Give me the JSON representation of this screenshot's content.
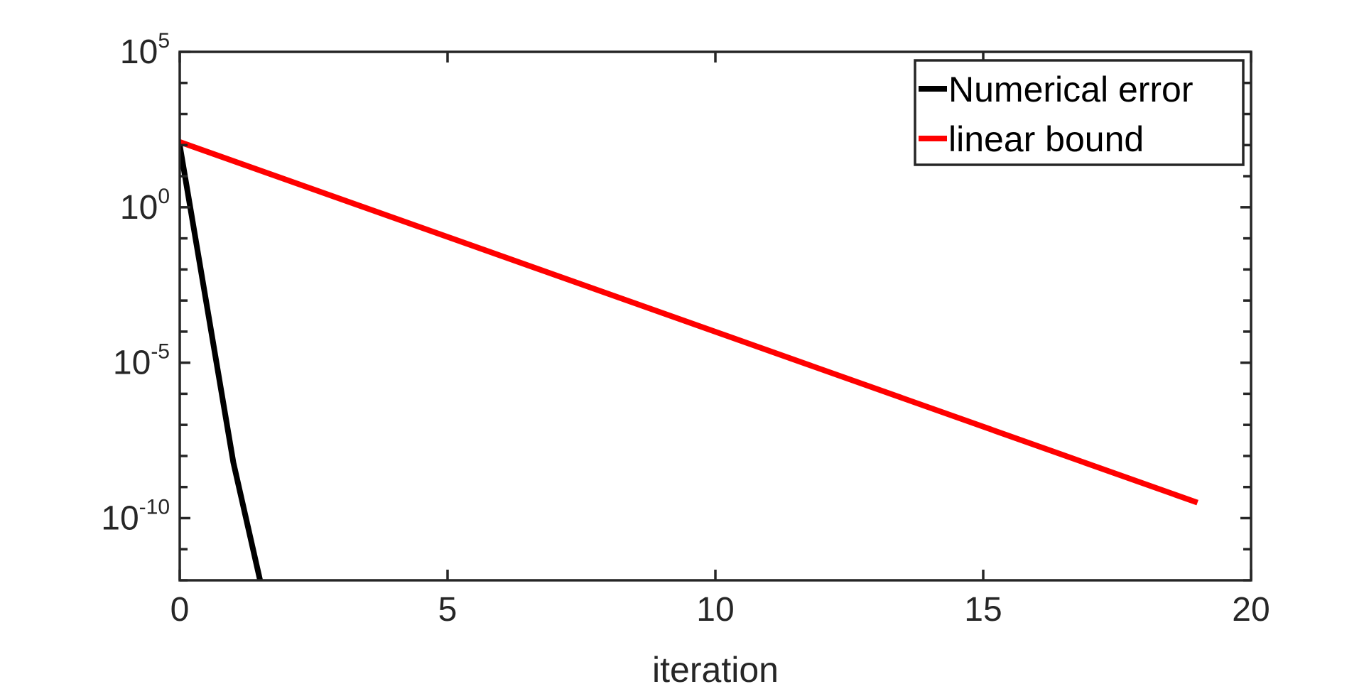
{
  "chart_data": {
    "type": "line",
    "title": "",
    "xlabel": "iteration",
    "ylabel": "",
    "xlim": [
      0,
      20
    ],
    "ylim_log10": [
      -12,
      5
    ],
    "y_scale": "log",
    "grid": false,
    "legend_position": "top-right",
    "x_ticks": [
      0,
      5,
      10,
      15,
      20
    ],
    "x_tick_labels": [
      "0",
      "5",
      "10",
      "15",
      "20"
    ],
    "y_ticks": [
      {
        "base": "10",
        "exp": "5",
        "log10": 5
      },
      {
        "base": "10",
        "exp": "0",
        "log10": 0
      },
      {
        "base": "10",
        "exp": "-5",
        "log10": -5
      },
      {
        "base": "10",
        "exp": "-10",
        "log10": -10
      }
    ],
    "series": [
      {
        "name": "Numerical error",
        "color": "#000000",
        "x": [
          0,
          1,
          1.5
        ],
        "log10_y": [
          2,
          -8.2,
          -12
        ]
      },
      {
        "name": "linear bound",
        "color": "#ff0000",
        "x": [
          0,
          19
        ],
        "log10_y": [
          2.1,
          -9.5
        ]
      }
    ]
  }
}
